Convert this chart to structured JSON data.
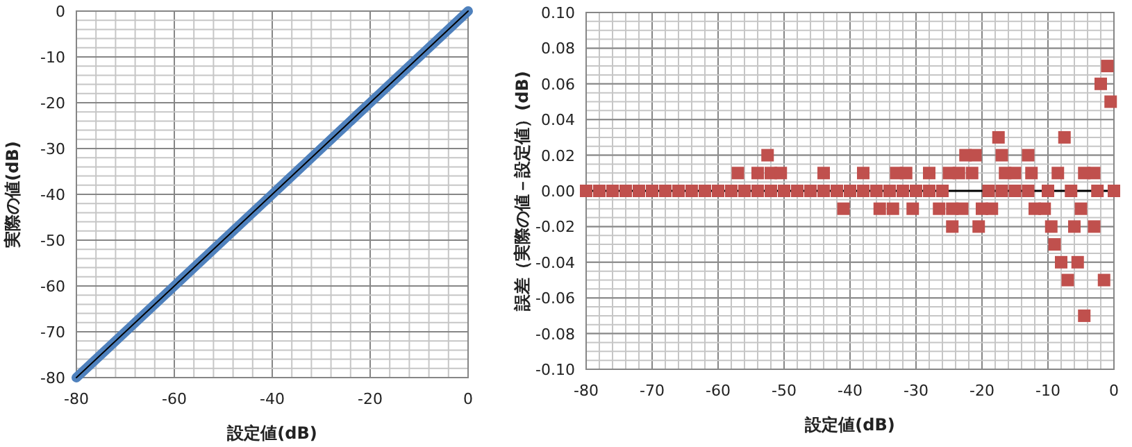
{
  "chart_data": [
    {
      "type": "line",
      "xlabel": "設定値(dB)",
      "ylabel": "実際の値(dB)",
      "xlim": [
        -80,
        0
      ],
      "ylim": [
        -80,
        0
      ],
      "xticks": [
        -80,
        -60,
        -40,
        -20,
        0
      ],
      "yticks": [
        0,
        -10,
        -20,
        -30,
        -40,
        -50,
        -60,
        -70,
        -80
      ],
      "grid": true,
      "series": [
        {
          "color": "#4f81bd",
          "x": [
            -80,
            -70,
            -60,
            -50,
            -40,
            -30,
            -20,
            -10,
            0
          ],
          "values": [
            -80,
            -70,
            -60,
            -50,
            -40,
            -30,
            -20,
            -10,
            0
          ]
        },
        {
          "color": "#000000",
          "x": [
            -80,
            0
          ],
          "values": [
            -80,
            0
          ]
        }
      ]
    },
    {
      "type": "scatter",
      "xlabel": "設定値(dB)",
      "ylabel": "誤差（実際の値－設定値）(dB)",
      "xlim": [
        -80,
        0
      ],
      "ylim": [
        -0.1,
        0.1
      ],
      "xticks": [
        -80,
        -70,
        -60,
        -50,
        -40,
        -30,
        -20,
        -10,
        0
      ],
      "yticks": [
        {
          "value": 0.1,
          "label": "0.10"
        },
        {
          "value": 0.08,
          "label": "0.08"
        },
        {
          "value": 0.06,
          "label": "0.06"
        },
        {
          "value": 0.04,
          "label": "0.04"
        },
        {
          "value": 0.02,
          "label": "0.02"
        },
        {
          "value": 0,
          "label": "0.00"
        },
        {
          "value": -0.02,
          "label": "-0.02"
        },
        {
          "value": -0.04,
          "label": "-0.04"
        },
        {
          "value": -0.06,
          "label": "-0.06"
        },
        {
          "value": -0.08,
          "label": "-0.08"
        },
        {
          "value": -0.1,
          "label": "-0.10"
        }
      ],
      "grid": true,
      "ref_lines": [
        {
          "axis": "y",
          "value": 0,
          "color": "#000000"
        }
      ],
      "series": [
        {
          "color": "#c0504d",
          "marker": "square",
          "x": [
            -80,
            -78,
            -76,
            -74,
            -72,
            -70,
            -68,
            -66,
            -64,
            -62,
            -60,
            -58,
            -56,
            -54,
            -52,
            -50,
            -48,
            -46,
            -44,
            -42,
            -40,
            -38,
            -36,
            -34,
            -32,
            -30,
            -28,
            -26,
            -19,
            -17,
            -15,
            -13,
            -10,
            -6.5,
            -2.5,
            0,
            -1,
            -2,
            -0.5,
            -17.5,
            -7.5,
            -52.5,
            -22.5,
            -21,
            -17,
            -13,
            -57,
            -54,
            -52,
            -50.5,
            -44,
            -38,
            -33,
            -31.5,
            -28,
            -25,
            -23.5,
            -21.5,
            -16.5,
            -15,
            -12.5,
            -8.5,
            -4.5,
            -3,
            -41,
            -35.5,
            -33.5,
            -30.5,
            -26.5,
            -24.5,
            -23,
            -20,
            -18.5,
            -12,
            -10.5,
            -5,
            -24.5,
            -20.5,
            -9.5,
            -6,
            -3,
            -9,
            -8,
            -5.5,
            -7,
            -1.5,
            -4.5
          ],
          "values": [
            0,
            0,
            0,
            0,
            0,
            0,
            0,
            0,
            0,
            0,
            0,
            0,
            0,
            0,
            0,
            0,
            0,
            0,
            0,
            0,
            0,
            0,
            0,
            0,
            0,
            0,
            0,
            0,
            0,
            0,
            0,
            0,
            0,
            0,
            0,
            0,
            0.07,
            0.06,
            0.05,
            0.03,
            0.03,
            0.02,
            0.02,
            0.02,
            0.02,
            0.02,
            0.01,
            0.01,
            0.01,
            0.01,
            0.01,
            0.01,
            0.01,
            0.01,
            0.01,
            0.01,
            0.01,
            0.01,
            0.01,
            0.01,
            0.01,
            0.01,
            0.01,
            0.01,
            -0.01,
            -0.01,
            -0.01,
            -0.01,
            -0.01,
            -0.01,
            -0.01,
            -0.01,
            -0.01,
            -0.01,
            -0.01,
            -0.01,
            -0.02,
            -0.02,
            -0.02,
            -0.02,
            -0.02,
            -0.03,
            -0.04,
            -0.04,
            -0.05,
            -0.05,
            -0.07
          ]
        }
      ]
    }
  ]
}
